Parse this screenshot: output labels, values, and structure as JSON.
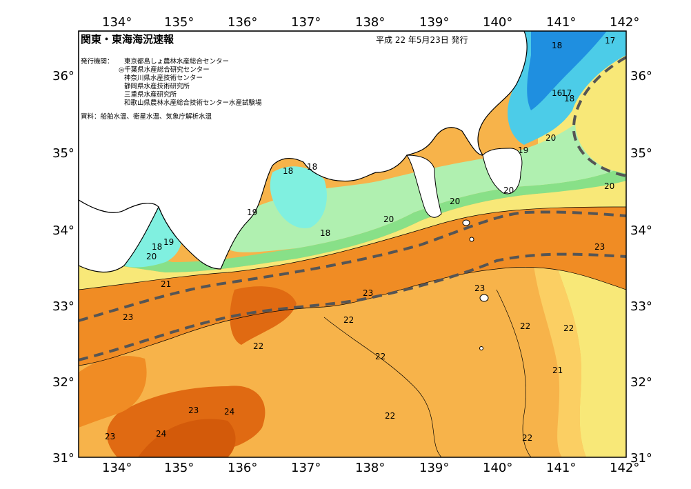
{
  "header": {
    "title": "関東・東海海況速報",
    "date": "平成 22 年5月23日 発行",
    "issuers_label": "発行機関：",
    "issuers": [
      "東京都島しょ農林水産総合センター",
      "◎千葉県水産総合研究センター",
      "神奈川県水産技術センター",
      "静岡県水産技術研究所",
      "三重県水産研究所",
      "和歌山県農林水産総合技術センター水産試験場"
    ],
    "source": "資料：船舶水温、衛星水温、気象庁解析水温"
  },
  "axes": {
    "lon_labels": [
      "134°",
      "135°",
      "136°",
      "137°",
      "138°",
      "139°",
      "140°",
      "141°",
      "142°"
    ],
    "lat_labels": [
      "31°",
      "32°",
      "33°",
      "34°",
      "35°",
      "36°"
    ]
  },
  "colors": {
    "temp_17": "#1f8fe0",
    "temp_18": "#4ccce8",
    "temp_19": "#80f0e0",
    "temp_20": "#88e088",
    "temp_21": "#f8e878",
    "temp_22": "#f7b34a",
    "temp_23": "#f08c24",
    "temp_24": "#e06a12",
    "land": "#ffffff",
    "kuroshio_axis": "#555555"
  },
  "contour_labels": [
    {
      "text": "17"
    },
    {
      "text": "18"
    },
    {
      "text": "16"
    },
    {
      "text": "17"
    },
    {
      "text": "18"
    },
    {
      "text": "20"
    },
    {
      "text": "19"
    },
    {
      "text": "20"
    },
    {
      "text": "20"
    },
    {
      "text": "20"
    },
    {
      "text": "20"
    },
    {
      "text": "18"
    },
    {
      "text": "18"
    },
    {
      "text": "19"
    },
    {
      "text": "18"
    },
    {
      "text": "18"
    },
    {
      "text": "19"
    },
    {
      "text": "20"
    },
    {
      "text": "21"
    },
    {
      "text": "23"
    },
    {
      "text": "23"
    },
    {
      "text": "23"
    },
    {
      "text": "22"
    },
    {
      "text": "23"
    },
    {
      "text": "22"
    },
    {
      "text": "22"
    },
    {
      "text": "22"
    },
    {
      "text": "22"
    },
    {
      "text": "21"
    },
    {
      "text": "22"
    },
    {
      "text": "22"
    },
    {
      "text": "23"
    },
    {
      "text": "24"
    },
    {
      "text": "24"
    },
    {
      "text": "23"
    }
  ]
}
